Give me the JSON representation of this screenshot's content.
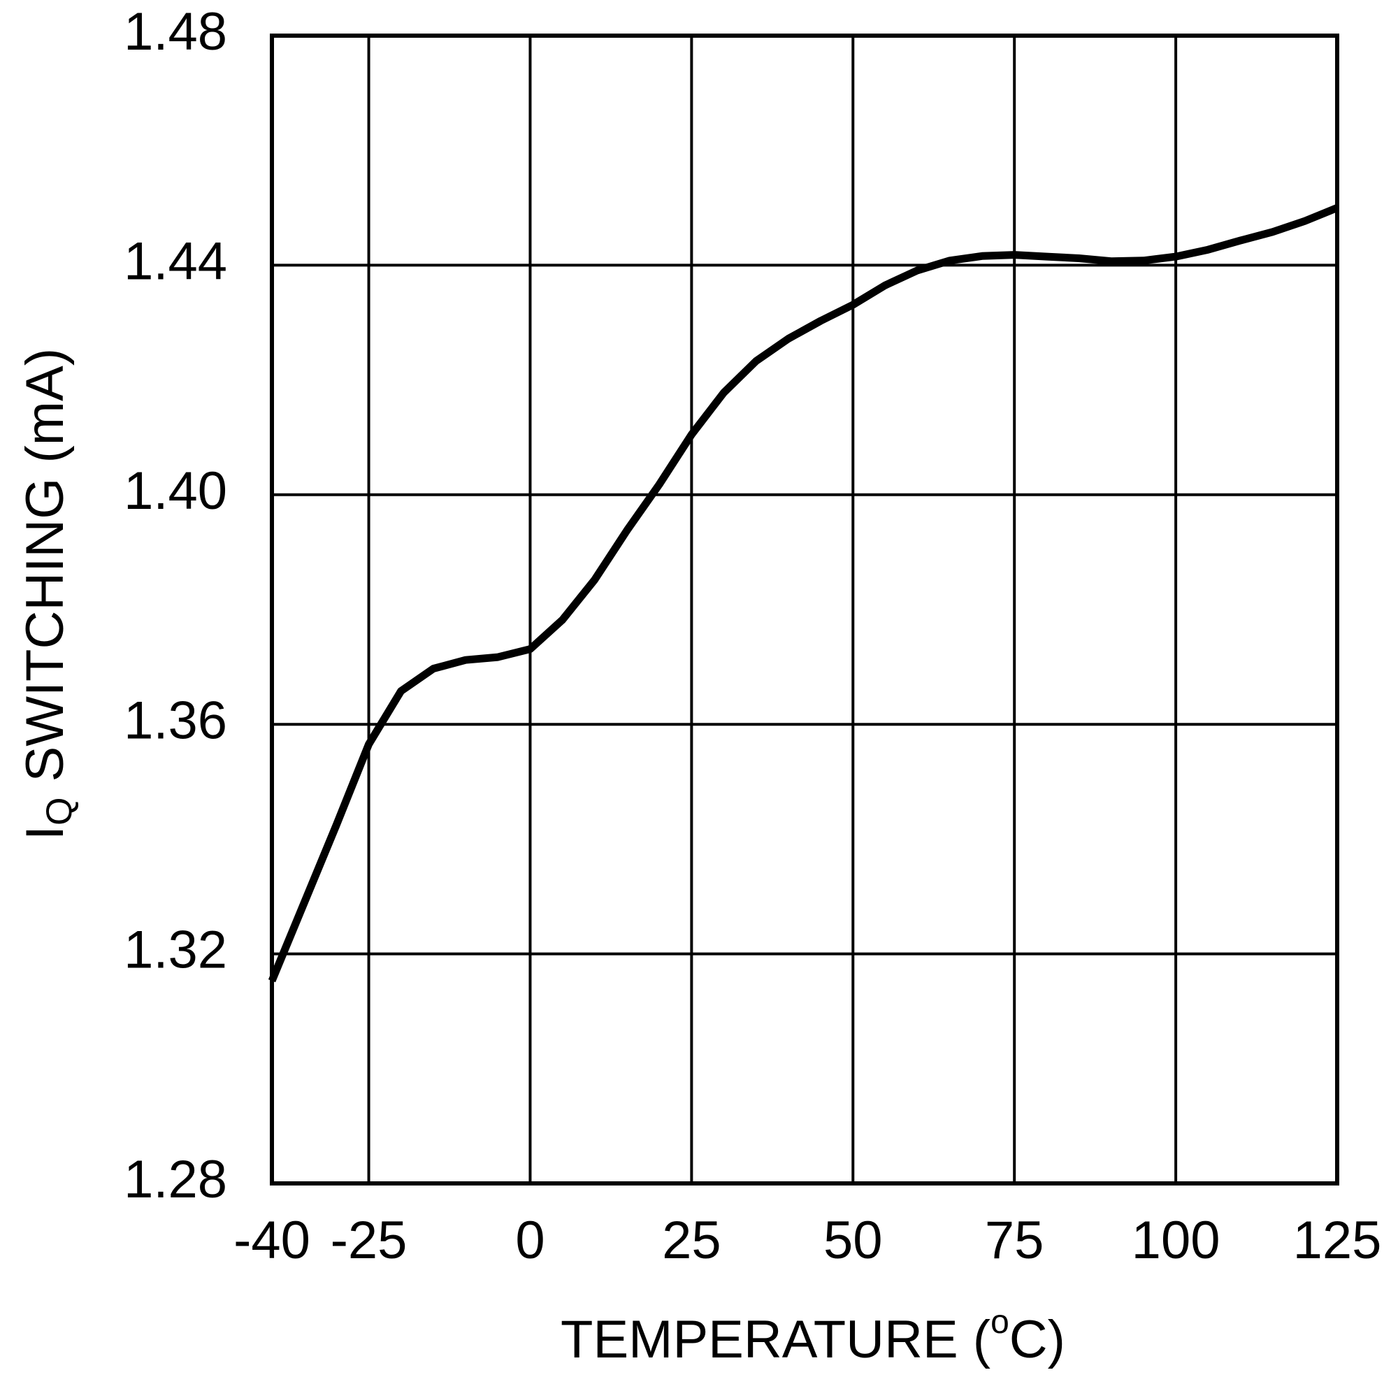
{
  "chart_data": {
    "type": "line",
    "x_label": [
      "TEMPERATURE (",
      "o",
      "C)"
    ],
    "y_label": [
      "I",
      "Q",
      "SWITCHING (mA)"
    ],
    "x": [
      -40,
      -30,
      -25,
      -20,
      -15,
      -10,
      -5,
      0,
      5,
      10,
      15,
      20,
      25,
      30,
      35,
      40,
      45,
      50,
      55,
      60,
      65,
      70,
      75,
      80,
      85,
      90,
      95,
      100,
      105,
      110,
      115,
      120,
      125
    ],
    "series": [
      {
        "color": "#000000",
        "values": [
          1.3153,
          1.3425,
          1.3565,
          1.3658,
          1.3697,
          1.3712,
          1.3717,
          1.3731,
          1.3782,
          1.3852,
          1.3938,
          1.4018,
          1.4105,
          1.4178,
          1.4233,
          1.4272,
          1.4303,
          1.4331,
          1.4365,
          1.4391,
          1.4408,
          1.4416,
          1.4418,
          1.4415,
          1.4412,
          1.4407,
          1.4408,
          1.4415,
          1.4427,
          1.4443,
          1.4458,
          1.4477,
          1.45
        ]
      }
    ],
    "xlim": [
      -40,
      125
    ],
    "xticks": [
      -40,
      -25,
      0,
      25,
      50,
      75,
      100,
      125
    ],
    "ylim": [
      1.28,
      1.48
    ],
    "yticks": [
      {
        "value": 1.28,
        "label": "1.28"
      },
      {
        "value": 1.32,
        "label": "1.32"
      },
      {
        "value": 1.36,
        "label": "1.36"
      },
      {
        "value": 1.4,
        "label": "1.40"
      },
      {
        "value": 1.44,
        "label": "1.44"
      },
      {
        "value": 1.48,
        "label": "1.48"
      }
    ],
    "grid": true
  }
}
